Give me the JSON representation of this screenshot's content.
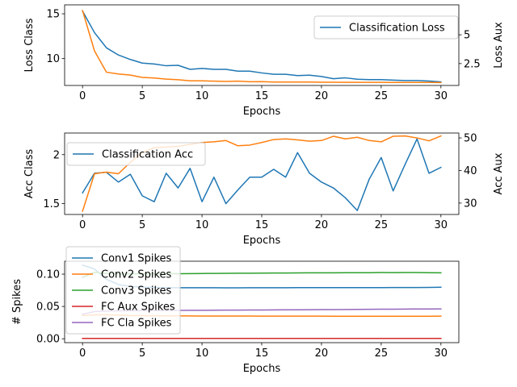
{
  "chart_data": [
    {
      "type": "line",
      "xlabel": "Epochs",
      "ylabel": "Loss Class",
      "ylabel_right": "Loss Aux",
      "xlim": [
        -1.5,
        31.5
      ],
      "ylim": [
        7.0,
        16.0
      ],
      "ylim_right": [
        0.6,
        7.6
      ],
      "x_ticks": [
        0,
        5,
        10,
        15,
        20,
        25,
        30
      ],
      "y_ticks": [
        10,
        15
      ],
      "y_ticks_right": [
        2.5,
        5.0
      ],
      "legend": "top-right",
      "series": [
        {
          "name": "Classification Loss",
          "axis": "left",
          "color": "#1f77b4",
          "x": [
            0,
            1,
            2,
            3,
            4,
            5,
            6,
            7,
            8,
            9,
            10,
            11,
            12,
            13,
            14,
            15,
            16,
            17,
            18,
            19,
            20,
            21,
            22,
            23,
            24,
            25,
            26,
            27,
            28,
            29,
            30
          ],
          "values": [
            15.3,
            12.9,
            11.2,
            10.4,
            9.9,
            9.5,
            9.4,
            9.2,
            9.25,
            8.8,
            8.9,
            8.8,
            8.8,
            8.6,
            8.6,
            8.4,
            8.25,
            8.25,
            8.1,
            8.15,
            8.0,
            7.75,
            7.85,
            7.7,
            7.65,
            7.65,
            7.6,
            7.55,
            7.55,
            7.5,
            7.4
          ]
        },
        {
          "axis": "right",
          "color": "#ff7f0e",
          "x": [
            0,
            1,
            2,
            3,
            4,
            5,
            6,
            7,
            8,
            9,
            10,
            11,
            12,
            13,
            14,
            15,
            16,
            17,
            18,
            19,
            20,
            21,
            22,
            23,
            24,
            25,
            26,
            27,
            28,
            29,
            30
          ],
          "values": [
            7.1,
            3.6,
            1.75,
            1.6,
            1.5,
            1.3,
            1.25,
            1.15,
            1.1,
            1.0,
            1.0,
            0.98,
            0.95,
            0.98,
            0.92,
            0.93,
            0.9,
            0.9,
            0.9,
            0.9,
            0.88,
            0.88,
            0.87,
            0.87,
            0.87,
            0.87,
            0.86,
            0.86,
            0.86,
            0.86,
            0.85
          ]
        }
      ]
    },
    {
      "type": "line",
      "xlabel": "Epochs",
      "ylabel": "Acc Class",
      "ylabel_right": "Acc Aux",
      "xlim": [
        -1.5,
        31.5
      ],
      "ylim": [
        1.39,
        2.22
      ],
      "ylim_right": [
        26.5,
        51.5
      ],
      "x_ticks": [
        0,
        5,
        10,
        15,
        20,
        25,
        30
      ],
      "y_ticks": [
        1.5,
        2.0
      ],
      "y_ticks_right": [
        30,
        40,
        50
      ],
      "legend": "top-left",
      "series": [
        {
          "name": "Classification Acc",
          "axis": "left",
          "color": "#1f77b4",
          "x": [
            0,
            1,
            2,
            3,
            4,
            5,
            6,
            7,
            8,
            9,
            10,
            11,
            12,
            13,
            14,
            15,
            16,
            17,
            18,
            19,
            20,
            21,
            22,
            23,
            24,
            25,
            26,
            27,
            28,
            29,
            30
          ],
          "values": [
            1.61,
            1.81,
            1.82,
            1.72,
            1.8,
            1.58,
            1.52,
            1.81,
            1.66,
            1.86,
            1.52,
            1.77,
            1.5,
            1.64,
            1.77,
            1.77,
            1.85,
            1.77,
            2.02,
            1.81,
            1.72,
            1.66,
            1.56,
            1.43,
            1.75,
            1.97,
            1.63,
            1.9,
            2.16,
            1.81,
            1.87
          ]
        },
        {
          "axis": "right",
          "color": "#ff7f0e",
          "x": [
            0,
            1,
            2,
            3,
            4,
            5,
            6,
            7,
            8,
            9,
            10,
            11,
            12,
            13,
            14,
            15,
            16,
            17,
            18,
            19,
            20,
            21,
            22,
            23,
            24,
            25,
            26,
            27,
            28,
            29,
            30
          ],
          "values": [
            27.5,
            39,
            39.5,
            39,
            42.5,
            45.5,
            47,
            47.2,
            47.4,
            48,
            48.6,
            48.8,
            49.2,
            47.6,
            47.8,
            48.6,
            49.5,
            49.7,
            49.4,
            49,
            49.2,
            50.5,
            49.7,
            50.2,
            49.2,
            48.8,
            50.5,
            50.6,
            50,
            49.1,
            50.6
          ]
        }
      ]
    },
    {
      "type": "line",
      "xlabel": "Epochs",
      "ylabel": "# Spikes",
      "xlim": [
        -1.5,
        31.5
      ],
      "ylim": [
        -0.006,
        0.12
      ],
      "x_ticks": [
        0,
        5,
        10,
        15,
        20,
        25,
        30
      ],
      "y_ticks": [
        "0.00",
        "0.05",
        "0.10"
      ],
      "legend": "top-left",
      "series": [
        {
          "name": "Conv1 Spikes",
          "color": "#1f77b4",
          "x": [
            0,
            1,
            2,
            3,
            4,
            5,
            6,
            7,
            8,
            9,
            10,
            11,
            12,
            13,
            14,
            15,
            16,
            17,
            18,
            19,
            20,
            21,
            22,
            23,
            24,
            25,
            26,
            27,
            28,
            29,
            30
          ],
          "values": [
            0.114,
            0.108,
            0.092,
            0.084,
            0.081,
            0.08,
            0.0795,
            0.0792,
            0.079,
            0.079,
            0.079,
            0.079,
            0.0789,
            0.0789,
            0.079,
            0.079,
            0.079,
            0.079,
            0.0791,
            0.0791,
            0.0791,
            0.0791,
            0.0792,
            0.0792,
            0.0792,
            0.0792,
            0.0793,
            0.0793,
            0.0793,
            0.0794,
            0.0797
          ]
        },
        {
          "name": "Conv2 Spikes",
          "color": "#ff7f0e",
          "x": [
            0,
            1,
            2,
            3,
            4,
            5,
            6,
            7,
            8,
            9,
            10,
            11,
            12,
            13,
            14,
            15,
            16,
            17,
            18,
            19,
            20,
            21,
            22,
            23,
            24,
            25,
            26,
            27,
            28,
            29,
            30
          ],
          "values": [
            0.036,
            0.037,
            0.037,
            0.0365,
            0.036,
            0.0358,
            0.0356,
            0.0355,
            0.0354,
            0.0353,
            0.0352,
            0.0352,
            0.0351,
            0.0351,
            0.0351,
            0.035,
            0.035,
            0.035,
            0.035,
            0.035,
            0.035,
            0.0349,
            0.0349,
            0.0349,
            0.0349,
            0.0349,
            0.0349,
            0.0349,
            0.0349,
            0.0349,
            0.035
          ]
        },
        {
          "name": "Conv3 Spikes",
          "color": "#2ca02c",
          "x": [
            0,
            1,
            2,
            3,
            4,
            5,
            6,
            7,
            8,
            9,
            10,
            11,
            12,
            13,
            14,
            15,
            16,
            17,
            18,
            19,
            20,
            21,
            22,
            23,
            24,
            25,
            26,
            27,
            28,
            29,
            30
          ],
          "values": [
            0.095,
            0.103,
            0.101,
            0.1005,
            0.1005,
            0.1005,
            0.1005,
            0.1006,
            0.1007,
            0.1008,
            0.101,
            0.1012,
            0.1013,
            0.1014,
            0.1015,
            0.1016,
            0.1017,
            0.1018,
            0.1019,
            0.102,
            0.102,
            0.1021,
            0.1022,
            0.1022,
            0.1023,
            0.1025,
            0.1024,
            0.1025,
            0.1025,
            0.1022,
            0.1021
          ]
        },
        {
          "name": "FC Aux Spikes",
          "color": "#d62728",
          "x": [
            0,
            1,
            2,
            3,
            4,
            5,
            6,
            7,
            8,
            9,
            10,
            11,
            12,
            13,
            14,
            15,
            16,
            17,
            18,
            19,
            20,
            21,
            22,
            23,
            24,
            25,
            26,
            27,
            28,
            29,
            30
          ],
          "values": [
            0.0005,
            0.0005,
            0.0005,
            0.0005,
            0.0005,
            0.0005,
            0.0005,
            0.0005,
            0.0005,
            0.0005,
            0.0005,
            0.0005,
            0.0005,
            0.0005,
            0.0005,
            0.0005,
            0.0005,
            0.0005,
            0.0005,
            0.0005,
            0.0005,
            0.0005,
            0.0005,
            0.0005,
            0.0005,
            0.0005,
            0.0005,
            0.0005,
            0.0005,
            0.0005,
            0.0005
          ]
        },
        {
          "name": "FC Cla Spikes",
          "color": "#9467bd",
          "x": [
            0,
            1,
            2,
            3,
            4,
            5,
            6,
            7,
            8,
            9,
            10,
            11,
            12,
            13,
            14,
            15,
            16,
            17,
            18,
            19,
            20,
            21,
            22,
            23,
            24,
            25,
            26,
            27,
            28,
            29,
            30
          ],
          "values": [
            0.038,
            0.042,
            0.043,
            0.0432,
            0.0434,
            0.0436,
            0.0437,
            0.0438,
            0.0439,
            0.044,
            0.0441,
            0.0442,
            0.0443,
            0.0444,
            0.0445,
            0.0446,
            0.0447,
            0.0448,
            0.0449,
            0.045,
            0.0451,
            0.0452,
            0.0453,
            0.0454,
            0.0456,
            0.0458,
            0.0458,
            0.046,
            0.0461,
            0.0461,
            0.0462
          ]
        }
      ]
    }
  ]
}
